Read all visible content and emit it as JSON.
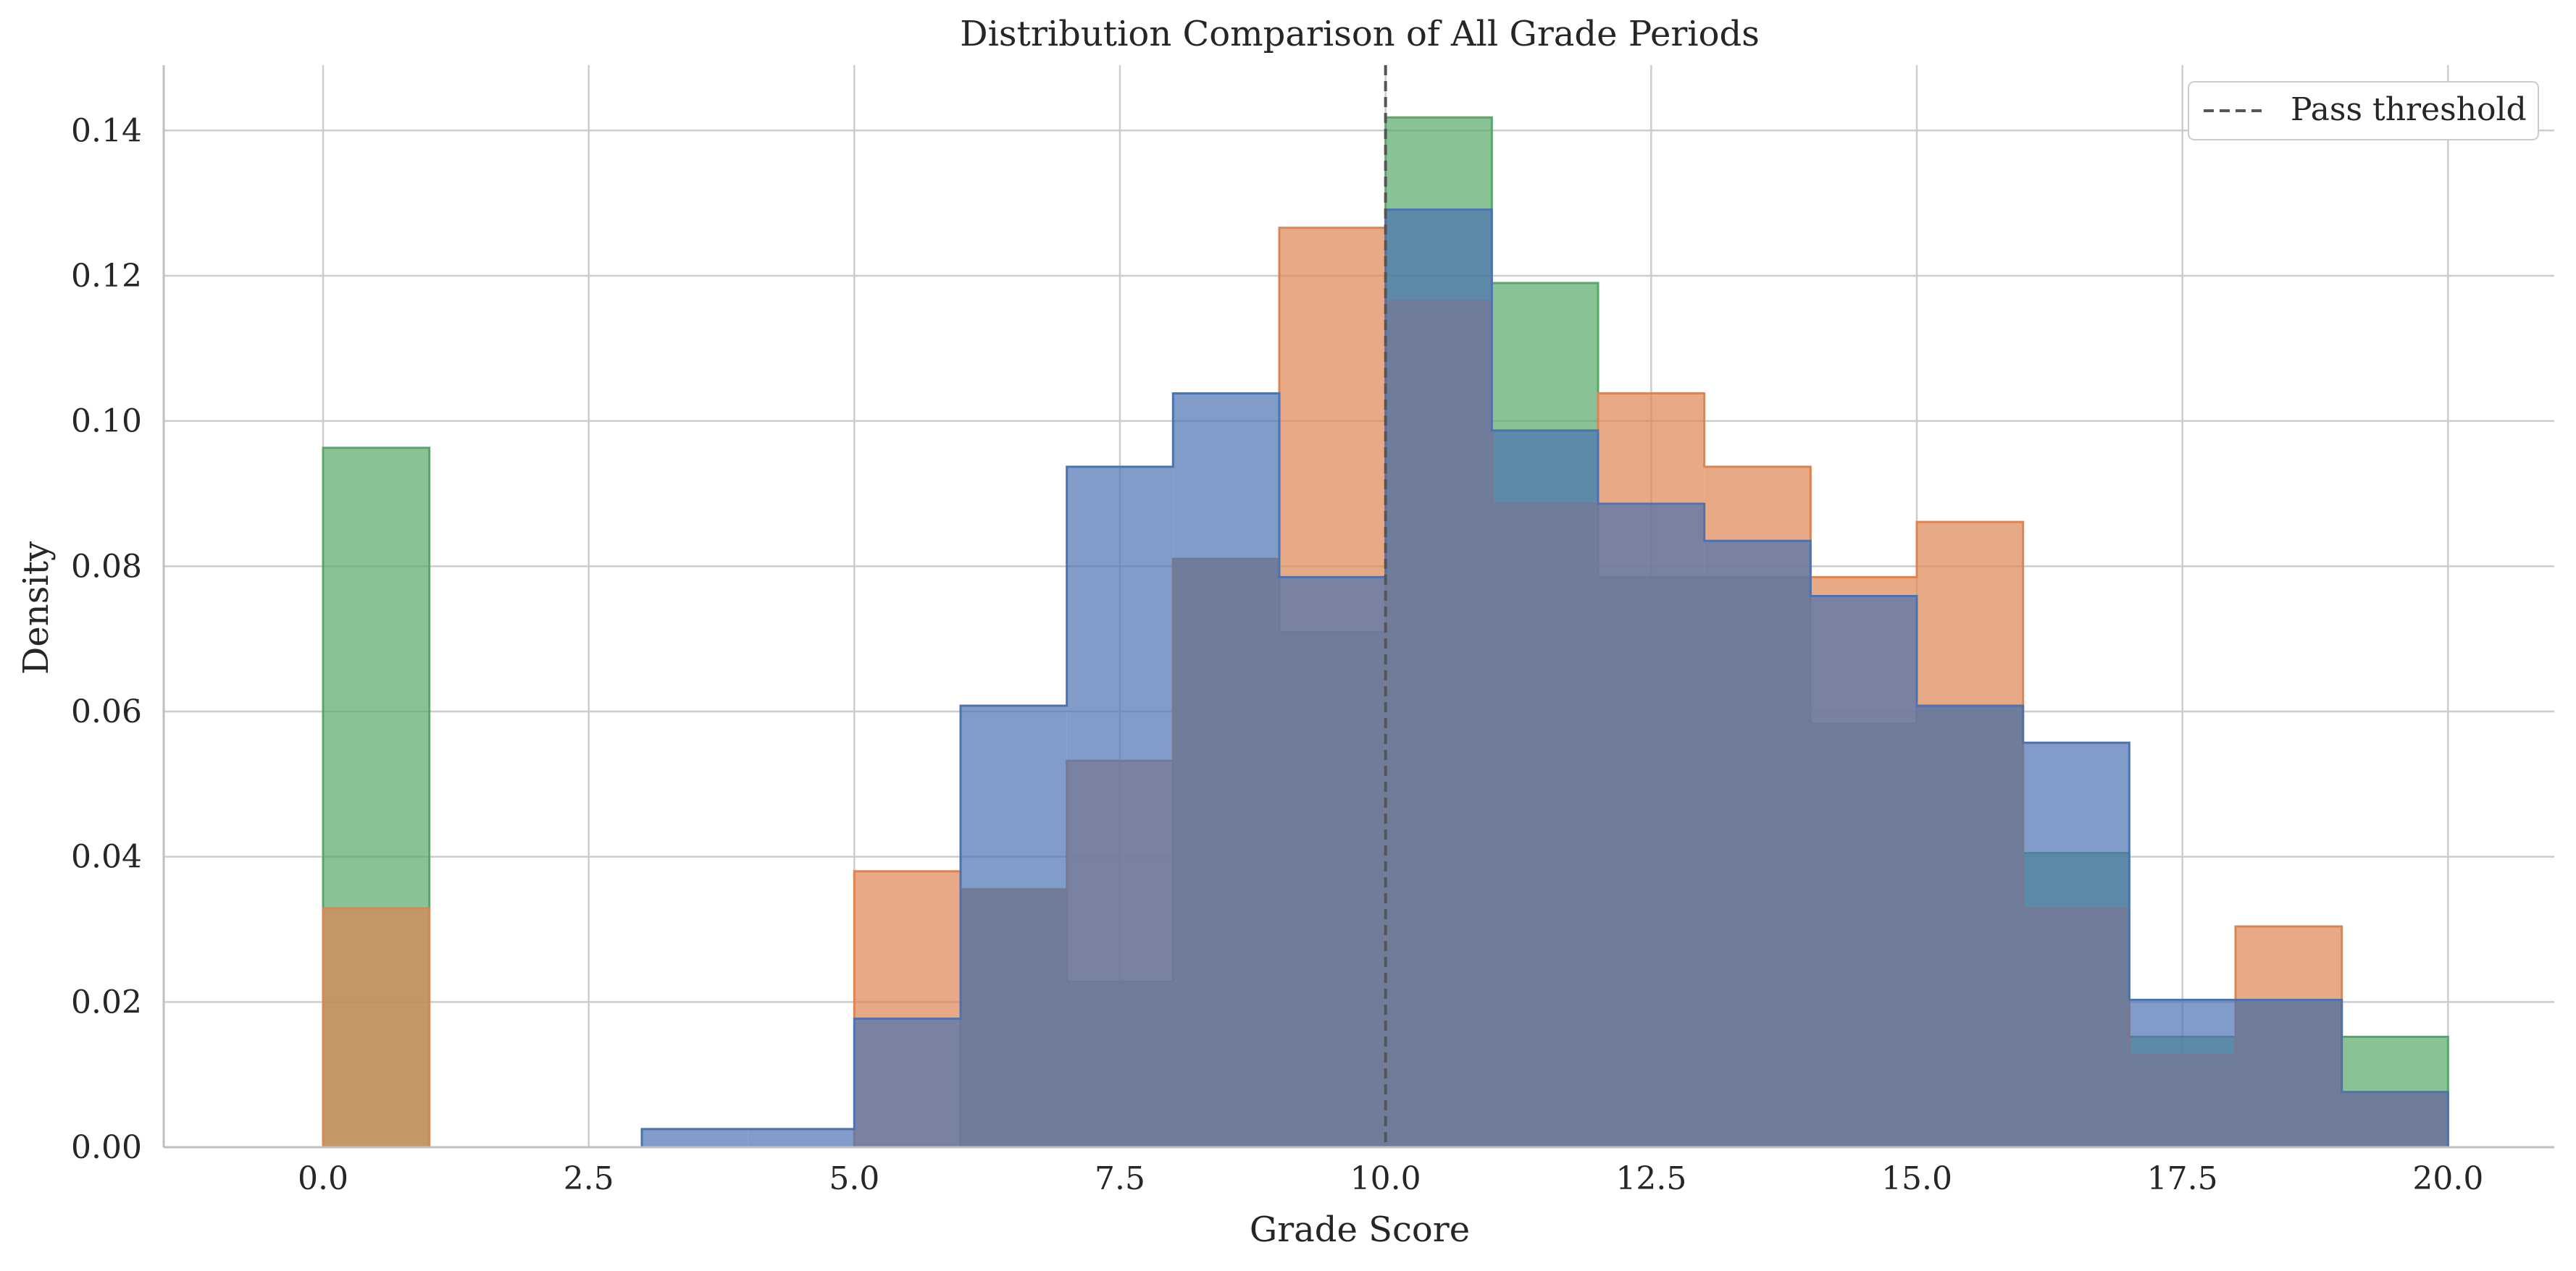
{
  "chart_data": {
    "type": "bar",
    "subtype": "overlaid-step-histogram",
    "title": "Distribution Comparison of All Grade Periods",
    "xlabel": "Grade Score",
    "ylabel": "Density",
    "xlim": [
      -1.5,
      21.0
    ],
    "ylim": [
      0.0,
      0.149
    ],
    "x_ticks": [
      "0.0",
      "2.5",
      "5.0",
      "7.5",
      "10.0",
      "12.5",
      "15.0",
      "17.5",
      "20.0"
    ],
    "y_ticks": [
      "0.00",
      "0.02",
      "0.04",
      "0.06",
      "0.08",
      "0.10",
      "0.12",
      "0.14"
    ],
    "grid": true,
    "legend_position": "top-right",
    "bin_edges": [
      0,
      1,
      2,
      3,
      4,
      5,
      6,
      7,
      8,
      9,
      10,
      11,
      12,
      13,
      14,
      15,
      16,
      17,
      18,
      19,
      20
    ],
    "series": [
      {
        "color": "#55a868",
        "values": [
          0.0963,
          0,
          0,
          0,
          0,
          0,
          0.0355,
          0.0228,
          0.081,
          0.0709,
          0.1418,
          0.119,
          0.0785,
          0.0785,
          0.0583,
          0.0608,
          0.0405,
          0.0152,
          0.0203,
          0.0152
        ]
      },
      {
        "color": "#dd8452",
        "values": [
          0.0329,
          0,
          0,
          0,
          0,
          0.038,
          0.0355,
          0.0532,
          0.081,
          0.1266,
          0.1165,
          0.0886,
          0.1038,
          0.0937,
          0.0785,
          0.0861,
          0.0329,
          0.0127,
          0.0304,
          0.0076
        ]
      },
      {
        "color": "#4c72b0",
        "values": [
          0,
          0,
          0,
          0.0025,
          0.0025,
          0.0177,
          0.0608,
          0.0937,
          0.1038,
          0.0785,
          0.1291,
          0.0987,
          0.0886,
          0.0835,
          0.0759,
          0.0608,
          0.0557,
          0.0203,
          0.0203,
          0.0076
        ]
      }
    ],
    "reference_line": {
      "x": 10,
      "label": "Pass threshold",
      "color": "#555555"
    }
  }
}
